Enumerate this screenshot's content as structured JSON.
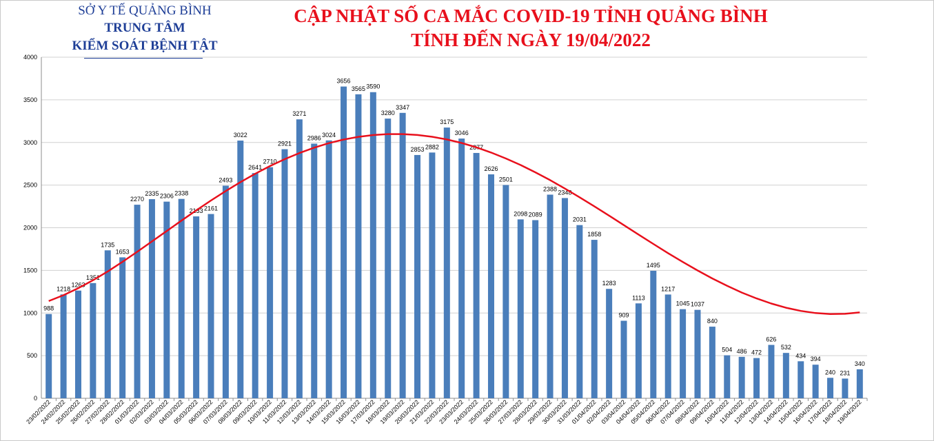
{
  "header": {
    "org_line1": "SỞ Y TẾ QUẢNG BÌNH",
    "org_line2": "TRUNG TÂM",
    "org_line3": "KIỂM SOÁT BỆNH TẬT",
    "title_line1": "CẬP NHẬT SỐ CA MẮC COVID-19 TỈNH QUẢNG BÌNH",
    "title_line2": "TÍNH ĐẾN NGÀY 19/04/2022"
  },
  "colors": {
    "bar": "#4a7ebb",
    "trend": "#e8101c",
    "grid": "#d0d0d0",
    "org_text": "#1f3f97",
    "title_text": "#e8101c"
  },
  "chart_data": {
    "type": "bar",
    "title": "CẬP NHẬT SỐ CA MẮC COVID-19 TỈNH QUẢNG BÌNH TÍNH ĐẾN NGÀY 19/04/2022",
    "xlabel": "",
    "ylabel": "",
    "ylim": [
      0,
      4000
    ],
    "yticks": [
      0,
      500,
      1000,
      1500,
      2000,
      2500,
      3000,
      3500,
      4000
    ],
    "grid": true,
    "trendline": "polynomial",
    "categories": [
      "23/02/2022",
      "24/02/2022",
      "25/02/2022",
      "26/02/2022",
      "27/02/2022",
      "28/02/2022",
      "01/03/2022",
      "02/03/2022",
      "03/03/2022",
      "04/03/2022",
      "05/03/2022",
      "06/03/2022",
      "07/03/2022",
      "08/03/2022",
      "09/03/2022",
      "10/03/2022",
      "11/03/2022",
      "12/03/2022",
      "13/03/2022",
      "14/03/2022",
      "15/03/2022",
      "16/03/2022",
      "17/03/2022",
      "18/03/2022",
      "19/03/2022",
      "20/03/2022",
      "21/03/2022",
      "22/03/2022",
      "23/03/2022",
      "24/03/2022",
      "25/03/2022",
      "26/03/2022",
      "27/03/2022",
      "28/03/2022",
      "29/03/2022",
      "30/03/2022",
      "31/03/2022",
      "01/04/2022",
      "02/04/2022",
      "03/04/2022",
      "04/04/2022",
      "05/04/2022",
      "06/04/2022",
      "07/04/2022",
      "08/04/2022",
      "09/04/2022",
      "10/04/2022",
      "11/04/2022",
      "12/04/2022",
      "13/04/2022",
      "14/04/2022",
      "15/04/2022",
      "16/04/2022",
      "17/04/2022",
      "18/04/2022",
      "19/04/2022"
    ],
    "values": [
      988,
      1218,
      1263,
      1351,
      1735,
      1653,
      2270,
      2335,
      2306,
      2338,
      2133,
      2161,
      2493,
      3022,
      2641,
      2710,
      2921,
      3271,
      2986,
      3024,
      3656,
      3565,
      3590,
      3280,
      3347,
      2853,
      2882,
      3175,
      3046,
      2877,
      2626,
      2501,
      2098,
      2089,
      2388,
      2348,
      2031,
      1858,
      1283,
      909,
      1113,
      1495,
      1217,
      1045,
      1037,
      840,
      504,
      486,
      472,
      626,
      532,
      434,
      394,
      240,
      231,
      340
    ],
    "trend_values": [
      1140,
      1209,
      1291,
      1384,
      1488,
      1600,
      1718,
      1839,
      1961,
      2083,
      2203,
      2319,
      2430,
      2535,
      2633,
      2723,
      2804,
      2876,
      2939,
      2992,
      3034,
      3066,
      3087,
      3098,
      3098,
      3088,
      3067,
      3035,
      2994,
      2943,
      2882,
      2812,
      2735,
      2650,
      2558,
      2460,
      2357,
      2251,
      2142,
      2031,
      1920,
      1810,
      1702,
      1598,
      1499,
      1405,
      1319,
      1240,
      1171,
      1111,
      1062,
      1025,
      1000,
      988,
      991,
      1007
    ]
  }
}
